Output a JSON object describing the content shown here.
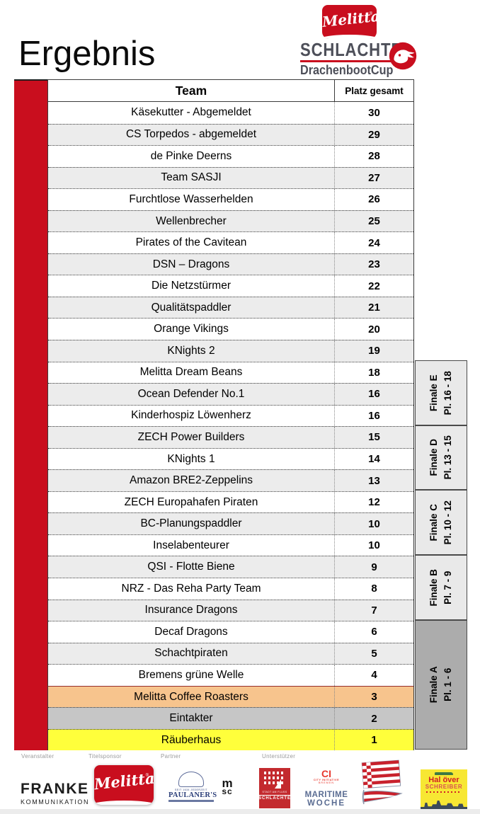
{
  "page": {
    "title": "Ergebnis"
  },
  "logo": {
    "melitta": "Melitta",
    "registered": "®",
    "line1": "SCHLACHTE",
    "line2": "DrachenbootCup"
  },
  "table": {
    "headers": {
      "team": "Team",
      "platz": "Platz gesamt"
    },
    "rows": [
      {
        "team": "Käsekutter - Abgemeldet",
        "platz": "30",
        "style": "white"
      },
      {
        "team": "CS Torpedos - abgemeldet",
        "platz": "29",
        "style": "gray"
      },
      {
        "team": "de Pinke Deerns",
        "platz": "28",
        "style": "white"
      },
      {
        "team": "Team SASJI",
        "platz": "27",
        "style": "gray"
      },
      {
        "team": "Furchtlose Wasserhelden",
        "platz": "26",
        "style": "white"
      },
      {
        "team": "Wellenbrecher",
        "platz": "25",
        "style": "gray"
      },
      {
        "team": "Pirates of the Cavitean",
        "platz": "24",
        "style": "white"
      },
      {
        "team": "DSN – Dragons",
        "platz": "23",
        "style": "gray"
      },
      {
        "team": "Die Netzstürmer",
        "platz": "22",
        "style": "white"
      },
      {
        "team": "Qualitätspaddler",
        "platz": "21",
        "style": "gray"
      },
      {
        "team": "Orange Vikings",
        "platz": "20",
        "style": "white"
      },
      {
        "team": "KNights 2",
        "platz": "19",
        "style": "gray"
      },
      {
        "team": "Melitta Dream Beans",
        "platz": "18",
        "style": "white"
      },
      {
        "team": "Ocean Defender No.1",
        "platz": "16",
        "style": "gray"
      },
      {
        "team": "Kinderhospiz Löwenherz",
        "platz": "16",
        "style": "white"
      },
      {
        "team": "ZECH Power Builders",
        "platz": "15",
        "style": "gray"
      },
      {
        "team": "KNights 1",
        "platz": "14",
        "style": "white"
      },
      {
        "team": "Amazon BRE2-Zeppelins",
        "platz": "13",
        "style": "gray"
      },
      {
        "team": "ZECH Europahafen Piraten",
        "platz": "12",
        "style": "white"
      },
      {
        "team": "BC-Planungspaddler",
        "platz": "10",
        "style": "gray"
      },
      {
        "team": "Inselabenteurer",
        "platz": "10",
        "style": "white"
      },
      {
        "team": "QSI - Flotte Biene",
        "platz": "9",
        "style": "gray"
      },
      {
        "team": "NRZ - Das Reha Party Team",
        "platz": "8",
        "style": "white"
      },
      {
        "team": "Insurance Dragons",
        "platz": "7",
        "style": "gray"
      },
      {
        "team": "Decaf Dragons",
        "platz": "6",
        "style": "white"
      },
      {
        "team": "Schachtpiraten",
        "platz": "5",
        "style": "gray"
      },
      {
        "team": "Bremens grüne Welle",
        "platz": "4",
        "style": "white"
      },
      {
        "team": "Melitta Coffee Roasters",
        "platz": "3",
        "style": "orange"
      },
      {
        "team": "Eintakter",
        "platz": "2",
        "style": "silver"
      },
      {
        "team": "Räuberhaus",
        "platz": "1",
        "style": "yellow"
      }
    ]
  },
  "finals": [
    {
      "label": "Finale E",
      "places": "Pl. 16 - 18",
      "top_row": 13,
      "row_span": 3,
      "shade": "light"
    },
    {
      "label": "Finale D",
      "places": "Pl. 13 - 15",
      "top_row": 16,
      "row_span": 3,
      "shade": "light"
    },
    {
      "label": "Finale C",
      "places": "Pl. 10 - 12",
      "top_row": 19,
      "row_span": 3,
      "shade": "light"
    },
    {
      "label": "Finale B",
      "places": "Pl. 7 - 9",
      "top_row": 22,
      "row_span": 3,
      "shade": "light"
    },
    {
      "label": "Finale A",
      "places": "Pl. 1 - 6",
      "top_row": 25,
      "row_span": 6,
      "shade": "dark"
    }
  ],
  "footer": {
    "labels": [
      "Veranstalter",
      "Titelsponsor",
      "Partner",
      "Unterstützer"
    ],
    "franke": {
      "line1": "FRANKE",
      "line2": "KOMMUNIKATION"
    },
    "melitta": "Melitta",
    "paulaners": {
      "tiny": "SEIT 1634 JEDERZEIT",
      "name": "PAULANER'S"
    },
    "msc": {
      "line1": "m",
      "line2": "sc"
    },
    "schlachte": {
      "line1": "STADT AM FLUSS",
      "line2": "SCHLACHTE"
    },
    "ci": {
      "big": "CI",
      "small1": "CITY INITIATIVE",
      "small2": "BREMEN",
      "m1": "MARITIME",
      "m2": "WOCHE"
    },
    "haloever": {
      "line1": "Hal över",
      "line2": "SCHREIBER"
    }
  },
  "colors": {
    "accent": "#C90E1E",
    "logo_gray": "#4D4F59",
    "row_alt": "#ECECEC",
    "row_orange": "#F7C48D",
    "row_silver": "#C6C6C6",
    "row_yellow": "#FFFF3B",
    "finale_light": "#E9E9E9",
    "finale_dark": "#ACACAC",
    "maroon_line": "#962D2D",
    "paulaner_blue": "#2B3E79",
    "maritime_blue": "#5A6C92",
    "ci_red": "#E8392F",
    "haloever_yellow": "#F7E733",
    "skyline": "#3C4A5A",
    "boat_green": "#3E7A43",
    "schlachte_red": "#C32A2E"
  }
}
